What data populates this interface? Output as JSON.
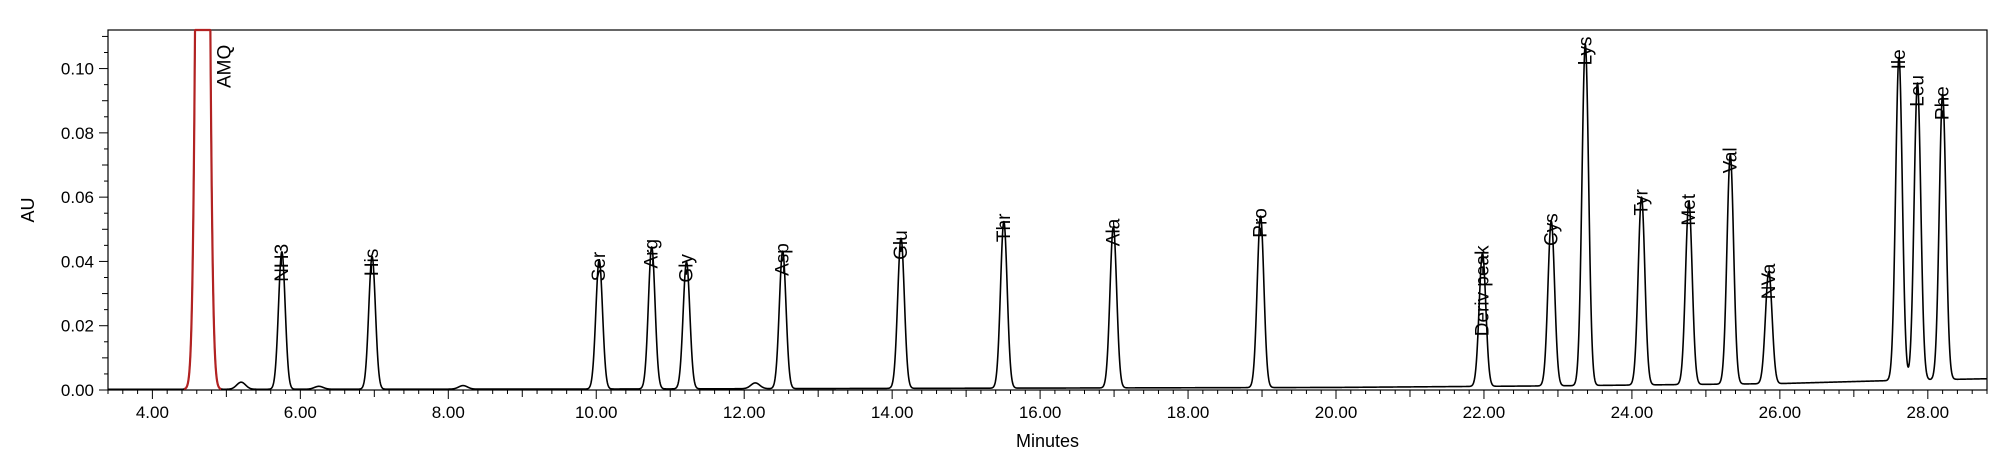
{
  "chart_data": {
    "type": "line",
    "xlabel": "Minutes",
    "ylabel": "AU",
    "xlim": [
      3.4,
      28.8
    ],
    "ylim": [
      0,
      0.112
    ],
    "x_ticks": [
      {
        "value": 4,
        "label": "4.00"
      },
      {
        "value": 6,
        "label": "6.00"
      },
      {
        "value": 8,
        "label": "8.00"
      },
      {
        "value": 10,
        "label": "10.00"
      },
      {
        "value": 12,
        "label": "12.00"
      },
      {
        "value": 14,
        "label": "14.00"
      },
      {
        "value": 16,
        "label": "16.00"
      },
      {
        "value": 18,
        "label": "18.00"
      },
      {
        "value": 20,
        "label": "20.00"
      },
      {
        "value": 22,
        "label": "22.00"
      },
      {
        "value": 24,
        "label": "24.00"
      },
      {
        "value": 26,
        "label": "26.00"
      },
      {
        "value": 28,
        "label": "28.00"
      }
    ],
    "y_ticks": [
      {
        "value": 0.0,
        "label": "0.00"
      },
      {
        "value": 0.02,
        "label": "0.02"
      },
      {
        "value": 0.04,
        "label": "0.04"
      },
      {
        "value": 0.06,
        "label": "0.06"
      },
      {
        "value": 0.08,
        "label": "0.08"
      },
      {
        "value": 0.1,
        "label": "0.10"
      }
    ],
    "baseline": [
      {
        "x": 3.4,
        "y": 0.0002
      },
      {
        "x": 10.0,
        "y": 0.0003
      },
      {
        "x": 20.0,
        "y": 0.0008
      },
      {
        "x": 23.0,
        "y": 0.0013
      },
      {
        "x": 26.0,
        "y": 0.002
      },
      {
        "x": 27.6,
        "y": 0.003
      },
      {
        "x": 28.8,
        "y": 0.0035
      }
    ],
    "reagent_peak": {
      "name": "AMQ",
      "x": 4.68,
      "height": 0.5,
      "width": 0.06,
      "color": "#b22222"
    },
    "peaks": [
      {
        "name": "AMQ",
        "x": 4.68,
        "y": 0.5
      },
      {
        "name": "NH3",
        "x": 5.75,
        "y": 0.043
      },
      {
        "name": "His",
        "x": 6.97,
        "y": 0.0415
      },
      {
        "name": "Ser",
        "x": 10.04,
        "y": 0.0405
      },
      {
        "name": "Arg",
        "x": 10.75,
        "y": 0.0445
      },
      {
        "name": "Gly",
        "x": 11.22,
        "y": 0.0398
      },
      {
        "name": "Asp",
        "x": 12.52,
        "y": 0.0432
      },
      {
        "name": "Glu",
        "x": 14.12,
        "y": 0.0472
      },
      {
        "name": "Thr",
        "x": 15.51,
        "y": 0.0524
      },
      {
        "name": "Ala",
        "x": 16.99,
        "y": 0.0508
      },
      {
        "name": "Pro",
        "x": 18.98,
        "y": 0.0541
      },
      {
        "name": "Deriv peak",
        "x": 21.98,
        "y": 0.0425
      },
      {
        "name": "Cys",
        "x": 22.91,
        "y": 0.0525
      },
      {
        "name": "Lys",
        "x": 23.37,
        "y": 0.1075
      },
      {
        "name": "Tyr",
        "x": 24.13,
        "y": 0.06
      },
      {
        "name": "Met",
        "x": 24.77,
        "y": 0.0585
      },
      {
        "name": "Val",
        "x": 25.33,
        "y": 0.073
      },
      {
        "name": "NVa",
        "x": 25.85,
        "y": 0.0368
      },
      {
        "name": "Ile",
        "x": 27.61,
        "y": 0.1035
      },
      {
        "name": "Leu",
        "x": 27.86,
        "y": 0.0955
      },
      {
        "name": "Phe",
        "x": 28.2,
        "y": 0.092
      }
    ],
    "minor_peaks": [
      {
        "x": 5.2,
        "y": 0.0022
      },
      {
        "x": 6.25,
        "y": 0.0009
      },
      {
        "x": 8.2,
        "y": 0.0011
      },
      {
        "x": 12.15,
        "y": 0.0018
      }
    ],
    "grid": false,
    "legend": "none",
    "line_color": "#000000"
  }
}
